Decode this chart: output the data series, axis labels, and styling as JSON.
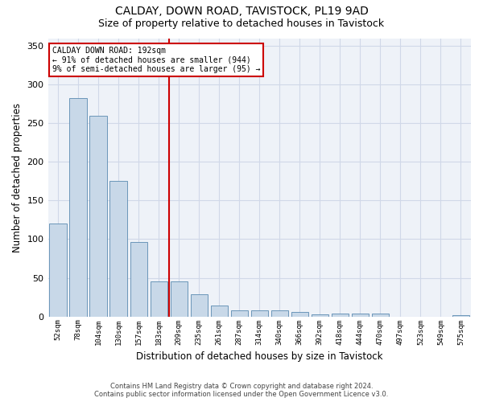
{
  "title": "CALDAY, DOWN ROAD, TAVISTOCK, PL19 9AD",
  "subtitle": "Size of property relative to detached houses in Tavistock",
  "xlabel": "Distribution of detached houses by size in Tavistock",
  "ylabel": "Number of detached properties",
  "categories": [
    "52sqm",
    "78sqm",
    "104sqm",
    "130sqm",
    "157sqm",
    "183sqm",
    "209sqm",
    "235sqm",
    "261sqm",
    "287sqm",
    "314sqm",
    "340sqm",
    "366sqm",
    "392sqm",
    "418sqm",
    "444sqm",
    "470sqm",
    "497sqm",
    "523sqm",
    "549sqm",
    "575sqm"
  ],
  "values": [
    120,
    283,
    260,
    175,
    96,
    45,
    45,
    29,
    14,
    8,
    8,
    8,
    6,
    3,
    4,
    4,
    4,
    0,
    0,
    0,
    2
  ],
  "bar_color": "#c8d8e8",
  "bar_edge_color": "#5a8ab0",
  "vline_x": 5.5,
  "vline_color": "#cc0000",
  "annotation_line1": "CALDAY DOWN ROAD: 192sqm",
  "annotation_line2": "← 91% of detached houses are smaller (944)",
  "annotation_line3": "9% of semi-detached houses are larger (95) →",
  "annotation_box_color": "#ffffff",
  "annotation_box_edge": "#cc0000",
  "grid_color": "#d0d8e8",
  "footer1": "Contains HM Land Registry data © Crown copyright and database right 2024.",
  "footer2": "Contains public sector information licensed under the Open Government Licence v3.0.",
  "ylim": [
    0,
    360
  ],
  "title_fontsize": 10,
  "subtitle_fontsize": 9,
  "xlabel_fontsize": 8.5,
  "ylabel_fontsize": 8.5,
  "bg_color": "#eef2f8"
}
